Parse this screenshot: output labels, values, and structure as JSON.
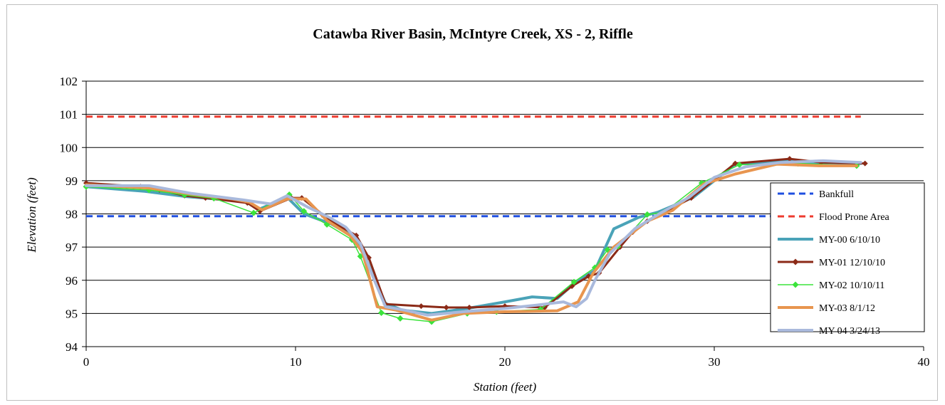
{
  "chart_data": {
    "type": "line",
    "title": "Catawba River Basin, McIntyre Creek, XS - 2, Riffle",
    "xlabel": "Station (feet)",
    "ylabel": "Elevation (feet)",
    "xlim": [
      0,
      40
    ],
    "ylim": [
      94,
      102
    ],
    "xticks": [
      0,
      10,
      20,
      30,
      40
    ],
    "yticks": [
      94,
      95,
      96,
      97,
      98,
      99,
      100,
      101,
      102
    ],
    "grid": "horizontal",
    "legend_position": "right",
    "series": [
      {
        "name": "Bankfull",
        "color": "#1f4fe0",
        "style": "dashed",
        "width": 3,
        "marker": "none",
        "points": [
          [
            0,
            97.93
          ],
          [
            37.0,
            97.93
          ]
        ]
      },
      {
        "name": "Flood Prone Area",
        "color": "#ee3b2f",
        "style": "dashed",
        "width": 3,
        "marker": "none",
        "points": [
          [
            0,
            100.93
          ],
          [
            37.0,
            100.93
          ]
        ]
      },
      {
        "name": "MY-00 6/10/10",
        "color": "#4aa3b8",
        "style": "solid",
        "width": 4,
        "marker": "none",
        "points": [
          [
            0,
            98.82
          ],
          [
            2.8,
            98.68
          ],
          [
            4.8,
            98.52
          ],
          [
            6.2,
            98.45
          ],
          [
            7.6,
            98.38
          ],
          [
            8.3,
            98.15
          ],
          [
            9.6,
            98.5
          ],
          [
            10.4,
            98.0
          ],
          [
            11.7,
            97.7
          ],
          [
            12.8,
            97.3
          ],
          [
            13.4,
            96.6
          ],
          [
            14.3,
            95.3
          ],
          [
            15.1,
            95.1
          ],
          [
            16.5,
            95.0
          ],
          [
            18.2,
            95.15
          ],
          [
            20.0,
            95.35
          ],
          [
            21.3,
            95.5
          ],
          [
            22.5,
            95.45
          ],
          [
            23.3,
            95.9
          ],
          [
            24.3,
            96.3
          ],
          [
            25.2,
            97.55
          ],
          [
            26.4,
            97.9
          ],
          [
            27.3,
            98.05
          ],
          [
            29.0,
            98.5
          ],
          [
            31.0,
            99.5
          ],
          [
            33.5,
            99.6
          ],
          [
            34.5,
            99.55
          ],
          [
            37.0,
            99.52
          ]
        ]
      },
      {
        "name": "MY-01 12/10/10",
        "color": "#8b2a17",
        "style": "solid",
        "width": 3,
        "marker": "diamond",
        "points": [
          [
            0,
            98.93
          ],
          [
            2.6,
            98.82
          ],
          [
            3.5,
            98.72
          ],
          [
            4.7,
            98.55
          ],
          [
            5.7,
            98.48
          ],
          [
            7.7,
            98.33
          ],
          [
            8.3,
            98.08
          ],
          [
            9.8,
            98.48
          ],
          [
            10.3,
            98.48
          ],
          [
            11.7,
            97.78
          ],
          [
            12.9,
            97.35
          ],
          [
            13.5,
            96.68
          ],
          [
            14.3,
            95.28
          ],
          [
            16.0,
            95.22
          ],
          [
            17.2,
            95.18
          ],
          [
            18.3,
            95.18
          ],
          [
            20.0,
            95.22
          ],
          [
            21.9,
            95.18
          ],
          [
            23.2,
            95.82
          ],
          [
            24.0,
            96.12
          ],
          [
            24.5,
            96.22
          ],
          [
            25.5,
            97.0
          ],
          [
            26.1,
            97.45
          ],
          [
            26.8,
            97.78
          ],
          [
            27.8,
            98.1
          ],
          [
            28.9,
            98.48
          ],
          [
            31.0,
            99.52
          ],
          [
            33.6,
            99.66
          ],
          [
            35.1,
            99.55
          ],
          [
            37.2,
            99.52
          ]
        ]
      },
      {
        "name": "MY-02 10/10/11",
        "color": "#3be33b",
        "style": "solid",
        "width": 1.5,
        "marker": "diamond",
        "points": [
          [
            0,
            98.82
          ],
          [
            3.0,
            98.72
          ],
          [
            4.7,
            98.57
          ],
          [
            6.1,
            98.47
          ],
          [
            8.0,
            98.03
          ],
          [
            9.7,
            98.58
          ],
          [
            10.4,
            98.08
          ],
          [
            11.5,
            97.68
          ],
          [
            12.7,
            97.22
          ],
          [
            13.1,
            96.72
          ],
          [
            14.1,
            95.02
          ],
          [
            15.0,
            94.85
          ],
          [
            16.5,
            94.75
          ],
          [
            18.2,
            95.0
          ],
          [
            19.6,
            95.05
          ],
          [
            21.7,
            95.12
          ],
          [
            23.3,
            95.95
          ],
          [
            24.3,
            96.38
          ],
          [
            24.9,
            96.92
          ],
          [
            25.4,
            97.02
          ],
          [
            26.8,
            97.98
          ],
          [
            27.6,
            98.05
          ],
          [
            29.4,
            98.93
          ],
          [
            31.2,
            99.48
          ],
          [
            34.0,
            99.52
          ],
          [
            36.8,
            99.45
          ]
        ]
      },
      {
        "name": "MY-03 8/1/12",
        "color": "#e8954f",
        "style": "solid",
        "width": 4,
        "marker": "none",
        "points": [
          [
            0,
            98.88
          ],
          [
            3.0,
            98.78
          ],
          [
            5.0,
            98.6
          ],
          [
            7.0,
            98.45
          ],
          [
            7.8,
            98.35
          ],
          [
            8.4,
            98.12
          ],
          [
            9.6,
            98.45
          ],
          [
            10.5,
            98.45
          ],
          [
            11.5,
            97.8
          ],
          [
            12.6,
            97.35
          ],
          [
            13.2,
            96.85
          ],
          [
            13.9,
            95.2
          ],
          [
            14.8,
            95.1
          ],
          [
            16.5,
            94.8
          ],
          [
            18.0,
            95.0
          ],
          [
            20.0,
            95.05
          ],
          [
            22.5,
            95.08
          ],
          [
            23.5,
            95.35
          ],
          [
            24.2,
            96.2
          ],
          [
            25.2,
            97.0
          ],
          [
            26.8,
            97.78
          ],
          [
            28.0,
            98.1
          ],
          [
            29.5,
            98.9
          ],
          [
            31.0,
            99.2
          ],
          [
            33.0,
            99.5
          ],
          [
            35.0,
            99.45
          ],
          [
            36.8,
            99.45
          ]
        ]
      },
      {
        "name": "MY-04 3/24/13",
        "color": "#a9b9dc",
        "style": "solid",
        "width": 4,
        "marker": "none",
        "points": [
          [
            0,
            98.85
          ],
          [
            3.0,
            98.85
          ],
          [
            5.0,
            98.62
          ],
          [
            7.5,
            98.42
          ],
          [
            8.8,
            98.3
          ],
          [
            9.6,
            98.55
          ],
          [
            10.6,
            98.2
          ],
          [
            11.6,
            97.9
          ],
          [
            12.4,
            97.6
          ],
          [
            13.1,
            97.1
          ],
          [
            13.7,
            96.1
          ],
          [
            14.3,
            95.2
          ],
          [
            15.2,
            95.1
          ],
          [
            16.3,
            94.95
          ],
          [
            18.0,
            95.05
          ],
          [
            20.0,
            95.15
          ],
          [
            21.5,
            95.25
          ],
          [
            22.8,
            95.35
          ],
          [
            23.4,
            95.2
          ],
          [
            23.9,
            95.45
          ],
          [
            24.3,
            96.0
          ],
          [
            25.0,
            96.8
          ],
          [
            26.2,
            97.55
          ],
          [
            27.5,
            98.05
          ],
          [
            28.8,
            98.5
          ],
          [
            30.0,
            99.1
          ],
          [
            31.5,
            99.42
          ],
          [
            33.2,
            99.55
          ],
          [
            35.2,
            99.6
          ],
          [
            37.0,
            99.55
          ]
        ]
      }
    ]
  }
}
